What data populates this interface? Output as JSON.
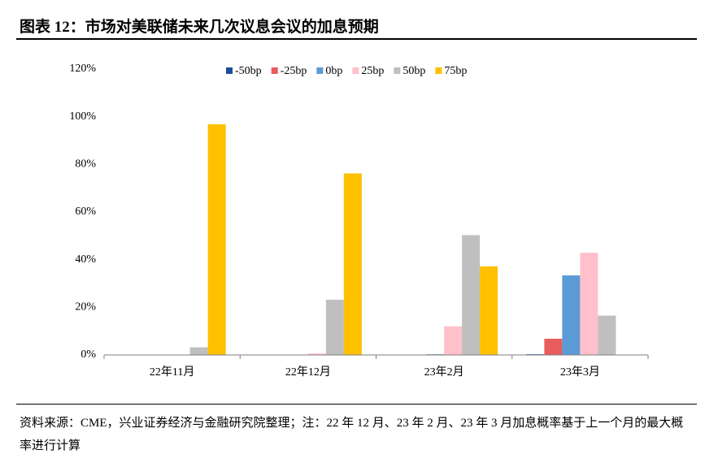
{
  "title": "图表 12：市场对美联储未来几次议息会议的加息预期",
  "note": "资料来源：CME，兴业证券经济与金融研究院整理；注：22 年 12 月、23 年 2 月、23 年 3 月加息概率基于上一个月的最大概率进行计算",
  "chart_data": {
    "type": "bar",
    "categories": [
      "22年11月",
      "22年12月",
      "23年2月",
      "23年3月"
    ],
    "series": [
      {
        "name": "-50bp",
        "color": "#1f4e9a",
        "values": [
          0,
          0,
          0,
          0.3
        ]
      },
      {
        "name": "-25bp",
        "color": "#e85c5c",
        "values": [
          0,
          0,
          0,
          6.8
        ]
      },
      {
        "name": "0bp",
        "color": "#5b9bd5",
        "values": [
          0,
          0,
          0.3,
          33.4
        ]
      },
      {
        "name": "25bp",
        "color": "#ffc0cb",
        "values": [
          0,
          0.6,
          12.0,
          42.9
        ]
      },
      {
        "name": "50bp",
        "color": "#bfbfbf",
        "values": [
          3.2,
          23.2,
          50.3,
          16.5
        ]
      },
      {
        "name": "75bp",
        "color": "#ffc000",
        "values": [
          96.8,
          76.2,
          37.2,
          0
        ]
      }
    ],
    "ylim": [
      0,
      120
    ],
    "yticks": [
      {
        "value": 0,
        "label": "0%"
      },
      {
        "value": 20,
        "label": "20%"
      },
      {
        "value": 40,
        "label": "40%"
      },
      {
        "value": 60,
        "label": "60%"
      },
      {
        "value": 80,
        "label": "80%"
      },
      {
        "value": 100,
        "label": "100%"
      },
      {
        "value": 120,
        "label": "120%"
      }
    ],
    "legend": "top"
  }
}
